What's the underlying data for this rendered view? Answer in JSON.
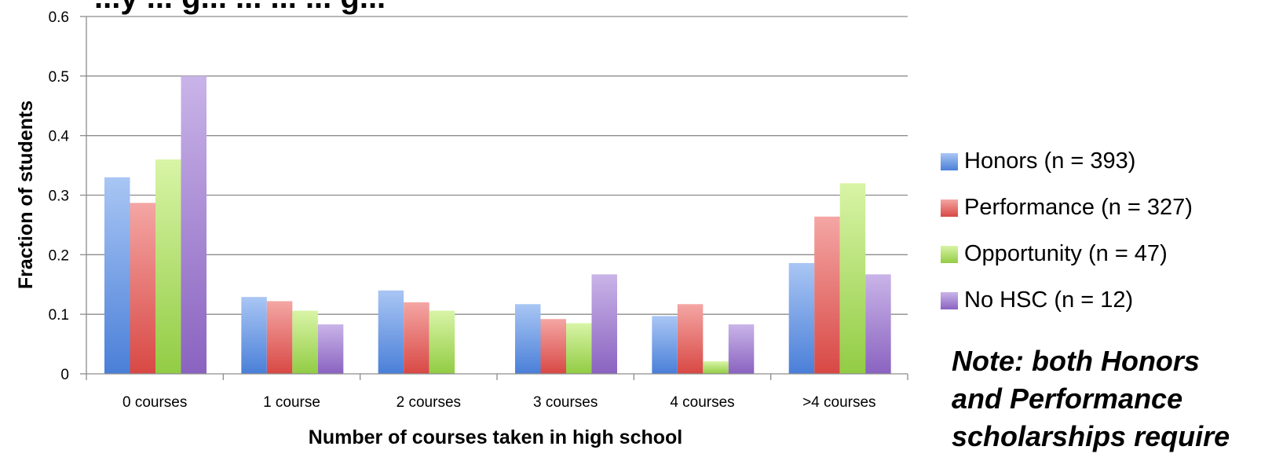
{
  "chart_data": {
    "type": "bar",
    "title": "...y ... g... ... ... ... g...",
    "xlabel": "Number of courses taken in high school",
    "ylabel": "Fraction of students",
    "ylim": [
      0,
      0.6
    ],
    "yticks": [
      "0",
      "0.1",
      "0.2",
      "0.3",
      "0.4",
      "0.5",
      "0.6"
    ],
    "grid": true,
    "legend_position": "right",
    "categories": [
      "0 courses",
      "1 course",
      "2 courses",
      "3 courses",
      "4 courses",
      ">4 courses"
    ],
    "series": [
      {
        "name": "Honors (n = 393)",
        "color": "#4F81BD",
        "values": [
          0.33,
          0.129,
          0.14,
          0.117,
          0.097,
          0.186
        ]
      },
      {
        "name": "Performance (n = 327)",
        "color": "#C0504D",
        "values": [
          0.287,
          0.122,
          0.12,
          0.092,
          0.117,
          0.264
        ]
      },
      {
        "name": "Opportunity (n = 47)",
        "color": "#9BBB59",
        "values": [
          0.36,
          0.106,
          0.106,
          0.085,
          0.021,
          0.32
        ]
      },
      {
        "name": "No HSC (n = 12)",
        "color": "#8064A2",
        "values": [
          0.5,
          0.083,
          0,
          0.167,
          0.083,
          0.167
        ]
      }
    ]
  },
  "note": {
    "line1": "Note: both Honors",
    "line2": "and Performance",
    "line3": "scholarships require"
  }
}
